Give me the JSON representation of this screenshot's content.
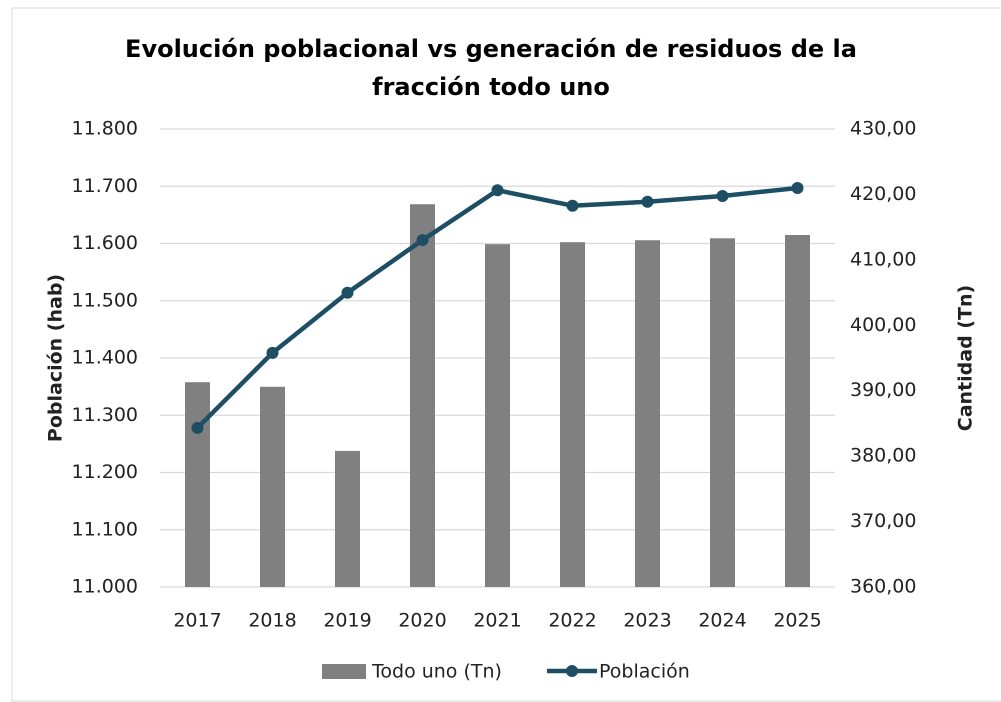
{
  "chart_data": {
    "type": "bar_line",
    "title": "Evolución poblacional vs generación de residuos de la fracción todo uno",
    "categories": [
      "2017",
      "2018",
      "2019",
      "2020",
      "2021",
      "2022",
      "2023",
      "2024",
      "2025"
    ],
    "ylabel": "Población (hab)",
    "y2label": "Cantidad (Tn)",
    "ylim": [
      11000,
      11800
    ],
    "yticks": [
      {
        "value": 11000,
        "label": "11.000"
      },
      {
        "value": 11100,
        "label": "11.100"
      },
      {
        "value": 11200,
        "label": "11.200"
      },
      {
        "value": 11300,
        "label": "11.300"
      },
      {
        "value": 11400,
        "label": "11.400"
      },
      {
        "value": 11500,
        "label": "11.500"
      },
      {
        "value": 11600,
        "label": "11.600"
      },
      {
        "value": 11700,
        "label": "11.700"
      },
      {
        "value": 11800,
        "label": "11.800"
      }
    ],
    "y2lim": [
      360,
      430
    ],
    "y2ticks": [
      {
        "value": 360,
        "label": "360,00"
      },
      {
        "value": 370,
        "label": "370,00"
      },
      {
        "value": 380,
        "label": "380,00"
      },
      {
        "value": 390,
        "label": "390,00"
      },
      {
        "value": 400,
        "label": "400,00"
      },
      {
        "value": 410,
        "label": "410,00"
      },
      {
        "value": 420,
        "label": "420,00"
      },
      {
        "value": 430,
        "label": "430,00"
      }
    ],
    "grid": true,
    "legend": "bottom",
    "series": [
      {
        "name": "Todo uno (Tn)",
        "type": "bar",
        "axis": "y2",
        "color": "#808080",
        "values": [
          391.3,
          390.6,
          380.8,
          418.5,
          412.4,
          412.7,
          413.0,
          413.3,
          413.8
        ]
      },
      {
        "name": "Población",
        "type": "line",
        "axis": "y",
        "color": "#1d4e63",
        "values": [
          11278,
          11409,
          11514,
          11606,
          11693,
          11666,
          11673,
          11683,
          11697
        ]
      }
    ]
  }
}
